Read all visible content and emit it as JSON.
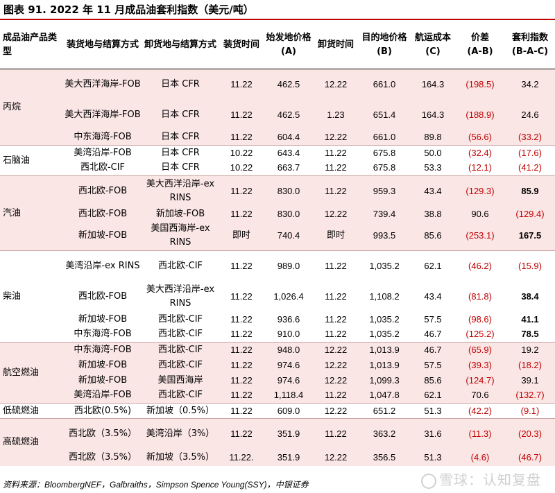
{
  "title": "图表 91. 2022 年 11 月成品油套利指数（美元/吨）",
  "headers": {
    "h1": "成品油产品类型",
    "h2": "装货地与结算方式",
    "h3": "卸货地与结算方式",
    "h4": "装货时间",
    "h5a": "始发地价格",
    "h5b": "(A)",
    "h6": "卸货时间",
    "h7a": "目的地价格",
    "h7b": "(B)",
    "h8a": "航运成本",
    "h8b": "(C)",
    "h9a": "价差",
    "h9b": "(A-B)",
    "h10a": "套利指数",
    "h10b": "(B-A-C)"
  },
  "categories": {
    "propane": "丙烷",
    "naphtha": "石脑油",
    "gasoline": "汽油",
    "diesel": "柴油",
    "jet": "航空燃油",
    "lsfo": "低硫燃油",
    "hsfo": "高硫燃油"
  },
  "rows": [
    {
      "load": "美大西洋海岸-FOB",
      "discharge": "日本 CFR",
      "load_time": "11.22",
      "origin_price": "462.5",
      "discharge_time": "12.22",
      "dest_price": "661.0",
      "freight": "164.3",
      "spread": "(198.5)",
      "arb": "34.2"
    },
    {
      "load": "美大西洋海岸-FOB",
      "discharge": "日本 CFR",
      "load_time": "11.22",
      "origin_price": "462.5",
      "discharge_time": "1.23",
      "dest_price": "651.4",
      "freight": "164.3",
      "spread": "(188.9)",
      "arb": "24.6"
    },
    {
      "load": "中东海湾-FOB",
      "discharge": "日本 CFR",
      "load_time": "11.22",
      "origin_price": "604.4",
      "discharge_time": "12.22",
      "dest_price": "661.0",
      "freight": "89.8",
      "spread": "(56.6)",
      "arb": "(33.2)"
    },
    {
      "load": "美湾沿岸-FOB",
      "discharge": "日本 CFR",
      "load_time": "10.22",
      "origin_price": "643.4",
      "discharge_time": "11.22",
      "dest_price": "675.8",
      "freight": "50.0",
      "spread": "(32.4)",
      "arb": "(17.6)"
    },
    {
      "load": "西北欧-CIF",
      "discharge": "日本 CFR",
      "load_time": "10.22",
      "origin_price": "663.7",
      "discharge_time": "11.22",
      "dest_price": "675.8",
      "freight": "53.3",
      "spread": "(12.1)",
      "arb": "(41.2)"
    },
    {
      "load": "西北欧-FOB",
      "discharge": "美大西洋沿岸-ex RINS",
      "load_time": "11.22",
      "origin_price": "830.0",
      "discharge_time": "11.22",
      "dest_price": "959.3",
      "freight": "43.4",
      "spread": "(129.3)",
      "arb": "85.9"
    },
    {
      "load": "西北欧-FOB",
      "discharge": "新加坡-FOB",
      "load_time": "11.22",
      "origin_price": "830.0",
      "discharge_time": "12.22",
      "dest_price": "739.4",
      "freight": "38.8",
      "spread": "90.6",
      "arb": "(129.4)"
    },
    {
      "load": "新加坡-FOB",
      "discharge": "美国西海岸-ex RINS",
      "load_time": "即时",
      "origin_price": "740.4",
      "discharge_time": "即时",
      "dest_price": "993.5",
      "freight": "85.6",
      "spread": "(253.1)",
      "arb": "167.5"
    },
    {
      "load": "美湾沿岸-ex RINS",
      "discharge": "西北欧-CIF",
      "load_time": "11.22",
      "origin_price": "989.0",
      "discharge_time": "11.22",
      "dest_price": "1,035.2",
      "freight": "62.1",
      "spread": "(46.2)",
      "arb": "(15.9)"
    },
    {
      "load": "西北欧-FOB",
      "discharge": "美大西洋沿岸-ex RINS",
      "load_time": "11.22",
      "origin_price": "1,026.4",
      "discharge_time": "11.22",
      "dest_price": "1,108.2",
      "freight": "43.4",
      "spread": "(81.8)",
      "arb": "38.4"
    },
    {
      "load": "新加坡-FOB",
      "discharge": "西北欧-CIF",
      "load_time": "11.22",
      "origin_price": "936.6",
      "discharge_time": "11.22",
      "dest_price": "1,035.2",
      "freight": "57.5",
      "spread": "(98.6)",
      "arb": "41.1"
    },
    {
      "load": "中东海湾-FOB",
      "discharge": "西北欧-CIF",
      "load_time": "11.22",
      "origin_price": "910.0",
      "discharge_time": "11.22",
      "dest_price": "1,035.2",
      "freight": "46.7",
      "spread": "(125.2)",
      "arb": "78.5"
    },
    {
      "load": "中东海湾-FOB",
      "discharge": "西北欧-CIF",
      "load_time": "11.22",
      "origin_price": "948.0",
      "discharge_time": "12.22",
      "dest_price": "1,013.9",
      "freight": "46.7",
      "spread": "(65.9)",
      "arb": "19.2"
    },
    {
      "load": "新加坡-FOB",
      "discharge": "西北欧-CIF",
      "load_time": "11.22",
      "origin_price": "974.6",
      "discharge_time": "12.22",
      "dest_price": "1,013.9",
      "freight": "57.5",
      "spread": "(39.3)",
      "arb": "(18.2)"
    },
    {
      "load": "新加坡-FOB",
      "discharge": "美国西海岸",
      "load_time": "11.22",
      "origin_price": "974.6",
      "discharge_time": "12.22",
      "dest_price": "1,099.3",
      "freight": "85.6",
      "spread": "(124.7)",
      "arb": "39.1"
    },
    {
      "load": "美湾沿岸-FOB",
      "discharge": "西北欧-CIF",
      "load_time": "11.22",
      "origin_price": "1,118.4",
      "discharge_time": "11.22",
      "dest_price": "1,047.8",
      "freight": "62.1",
      "spread": "70.6",
      "arb": "(132.7)"
    },
    {
      "load": "西北欧(0.5%)",
      "discharge": "新加坡（0.5%）",
      "load_time": "11.22",
      "origin_price": "609.0",
      "discharge_time": "12.22",
      "dest_price": "651.2",
      "freight": "51.3",
      "spread": "(42.2)",
      "arb": "(9.1)"
    },
    {
      "load": "西北欧（3.5%）",
      "discharge": "美湾沿岸（3%）",
      "load_time": "11.22",
      "origin_price": "351.9",
      "discharge_time": "11.22",
      "dest_price": "363.2",
      "freight": "31.6",
      "spread": "(11.3)",
      "arb": "(20.3)"
    },
    {
      "load": "西北欧（3.5%）",
      "discharge": "新加坡（3.5%）",
      "load_time": "11.22.",
      "origin_price": "351.9",
      "discharge_time": "12.22",
      "dest_price": "356.5",
      "freight": "51.3",
      "spread": "(4.6)",
      "arb": "(46.7)"
    }
  ],
  "source": "资料来源：BloombergNEF，Galbraiths，Simpson Spence Young(SSY)，中银证券",
  "watermark": "雪球：认知复盘"
}
